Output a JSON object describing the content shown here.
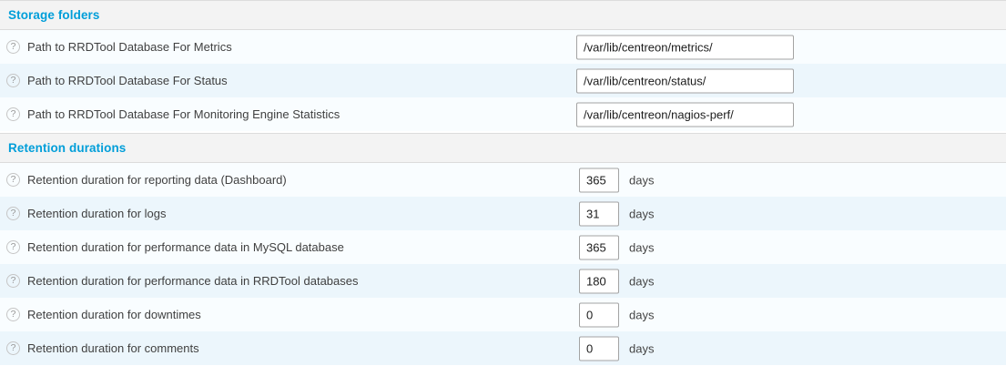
{
  "accent_color": "#009ed9",
  "help_icon_glyph": "?",
  "sections": [
    {
      "title": "Storage folders",
      "rows": [
        {
          "type": "text",
          "label": "Path to RRDTool Database For Metrics",
          "value": "/var/lib/centreon/metrics/",
          "unit": ""
        },
        {
          "type": "text",
          "label": "Path to RRDTool Database For Status",
          "value": "/var/lib/centreon/status/",
          "unit": ""
        },
        {
          "type": "text",
          "label": "Path to RRDTool Database For Monitoring Engine Statistics",
          "value": "/var/lib/centreon/nagios-perf/",
          "unit": ""
        }
      ]
    },
    {
      "title": "Retention durations",
      "rows": [
        {
          "type": "num",
          "label": "Retention duration for reporting data (Dashboard)",
          "value": "365",
          "unit": "days"
        },
        {
          "type": "num",
          "label": "Retention duration for logs",
          "value": "31",
          "unit": "days"
        },
        {
          "type": "num",
          "label": "Retention duration for performance data in MySQL database",
          "value": "365",
          "unit": "days"
        },
        {
          "type": "num",
          "label": "Retention duration for performance data in RRDTool databases",
          "value": "180",
          "unit": "days"
        },
        {
          "type": "num",
          "label": "Retention duration for downtimes",
          "value": "0",
          "unit": "days"
        },
        {
          "type": "num",
          "label": "Retention duration for comments",
          "value": "0",
          "unit": "days"
        }
      ]
    }
  ]
}
